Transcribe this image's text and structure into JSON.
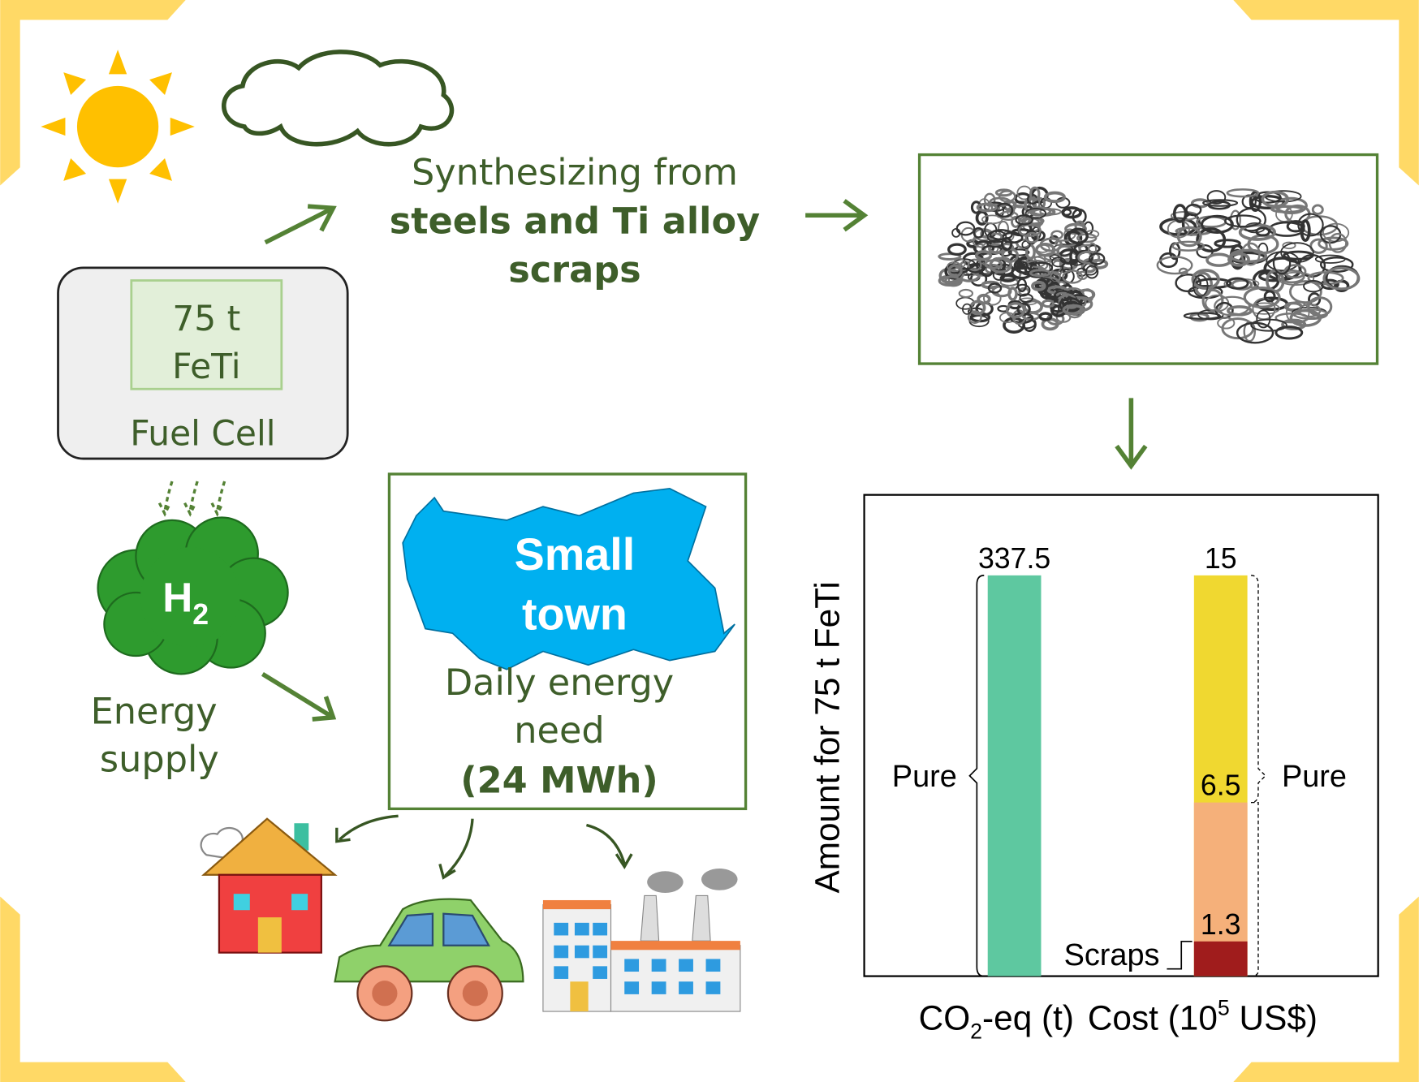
{
  "synthesis": {
    "lines": [
      "Synthesizing from",
      "steels and Ti alloy",
      "scraps"
    ]
  },
  "fuel_cell": {
    "material": [
      "75 t",
      "FeTi"
    ],
    "label": "Fuel Cell"
  },
  "h2": {
    "symbol": "H",
    "subscript": "2"
  },
  "energy_supply": [
    "Energy",
    "supply"
  ],
  "town": {
    "name": [
      "Small",
      "town"
    ],
    "need": [
      "Daily energy",
      "need",
      "(24 MWh)"
    ]
  },
  "chart_data": {
    "type": "bar",
    "y_label": "Amount for 75 t FeTi",
    "groups": [
      {
        "label_parts": [
          "CO",
          "2",
          "-eq (t)"
        ],
        "ylim": [
          0,
          337.5
        ],
        "bars": [
          {
            "value": 337.5,
            "color": "#5ec8a0"
          }
        ],
        "brace": "Pure"
      },
      {
        "label_parts": [
          "Cost (10",
          "5",
          " US$)"
        ],
        "ylim": [
          0,
          15
        ],
        "bars": [
          {
            "value": 15,
            "color": "#f0d830"
          },
          {
            "value": 6.5,
            "color": "#f5b07a"
          },
          {
            "value": 1.3,
            "color": "#a01c1c"
          }
        ],
        "brace": "Pure",
        "callout": "Scraps"
      }
    ]
  }
}
